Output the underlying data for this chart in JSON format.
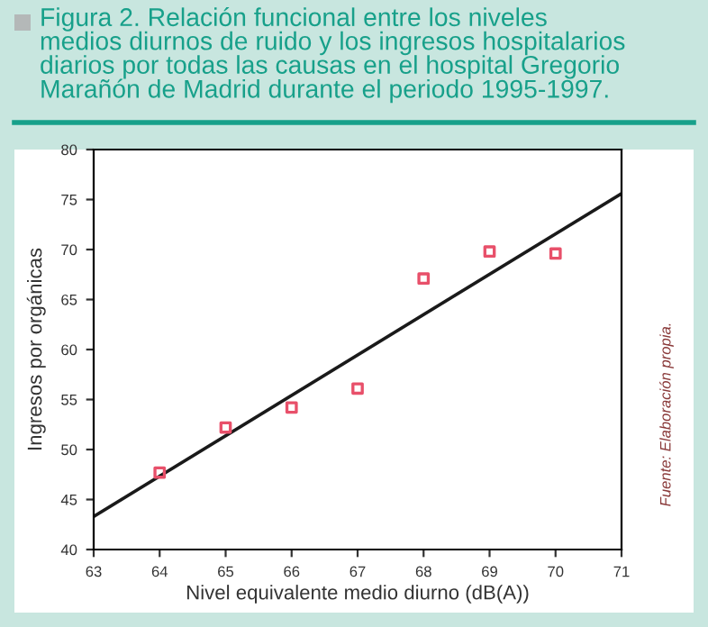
{
  "chart_data": {
    "type": "scatter",
    "title": "Figura 2. Relación funcional entre los niveles\nmedios diurnos de ruido y los ingresos hospitalarios\ndiarios por todas las causas en el hospital Gregorio\nMarañón de Madrid durante el periodo 1995-1997.",
    "xlabel": "Nivel equivalente medio diurno (dB(A))",
    "ylabel": "Ingresos por orgánicas",
    "annotations": [
      "Fuente: Elaboración propia."
    ],
    "series": [
      {
        "color": "#e8506a",
        "marker": "square",
        "x": [
          64,
          65,
          66,
          67,
          68,
          69,
          70
        ],
        "values": [
          47.7,
          52.2,
          54.2,
          56.1,
          67.1,
          69.8,
          69.6
        ]
      },
      {
        "type": "line",
        "color": "#1a1a1a",
        "x": [
          63,
          71
        ],
        "values": [
          43.3,
          75.6
        ]
      }
    ],
    "xlim": [
      63,
      71
    ],
    "xticks": [
      63,
      64,
      65,
      66,
      67,
      68,
      69,
      70,
      71
    ],
    "ylim": [
      40,
      80
    ],
    "yticks": [
      40,
      45,
      50,
      55,
      60,
      65,
      70,
      75,
      80
    ],
    "grid": false,
    "legend": false
  }
}
